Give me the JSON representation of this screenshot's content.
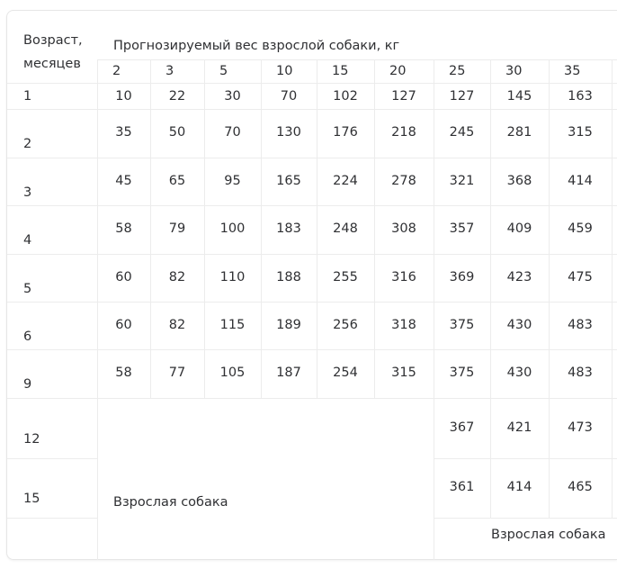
{
  "header": {
    "age_label_line1": "Возраст,",
    "age_label_line2": "месяцев",
    "weight_label": "Прогнозируемый вес взрослой собаки, кг",
    "weights": [
      "2",
      "3",
      "5",
      "10",
      "15",
      "20",
      "25",
      "30",
      "35"
    ]
  },
  "rows": [
    {
      "age": "1",
      "values": [
        "10",
        "22",
        "30",
        "70",
        "102",
        "127",
        "127",
        "145",
        "163"
      ]
    },
    {
      "age": "2",
      "values": [
        "35",
        "50",
        "70",
        "130",
        "176",
        "218",
        "245",
        "281",
        "315"
      ]
    },
    {
      "age": "3",
      "values": [
        "45",
        "65",
        "95",
        "165",
        "224",
        "278",
        "321",
        "368",
        "414"
      ]
    },
    {
      "age": "4",
      "values": [
        "58",
        "79",
        "100",
        "183",
        "248",
        "308",
        "357",
        "409",
        "459"
      ]
    },
    {
      "age": "5",
      "values": [
        "60",
        "82",
        "110",
        "188",
        "255",
        "316",
        "369",
        "423",
        "475"
      ]
    },
    {
      "age": "6",
      "values": [
        "60",
        "82",
        "115",
        "189",
        "256",
        "318",
        "375",
        "430",
        "483"
      ]
    },
    {
      "age": "9",
      "values": [
        "58",
        "77",
        "105",
        "187",
        "254",
        "315",
        "375",
        "430",
        "483"
      ]
    },
    {
      "age": "12",
      "values": [
        "",
        "",
        "",
        "",
        "",
        "",
        "367",
        "421",
        "473"
      ]
    },
    {
      "age": "15",
      "values": [
        "",
        "",
        "",
        "",
        "",
        "",
        "361",
        "414",
        "465"
      ]
    },
    {
      "age": "",
      "values": []
    }
  ],
  "adult_label_small": "Взрослая собака",
  "adult_label_large": "Взрослая собака"
}
